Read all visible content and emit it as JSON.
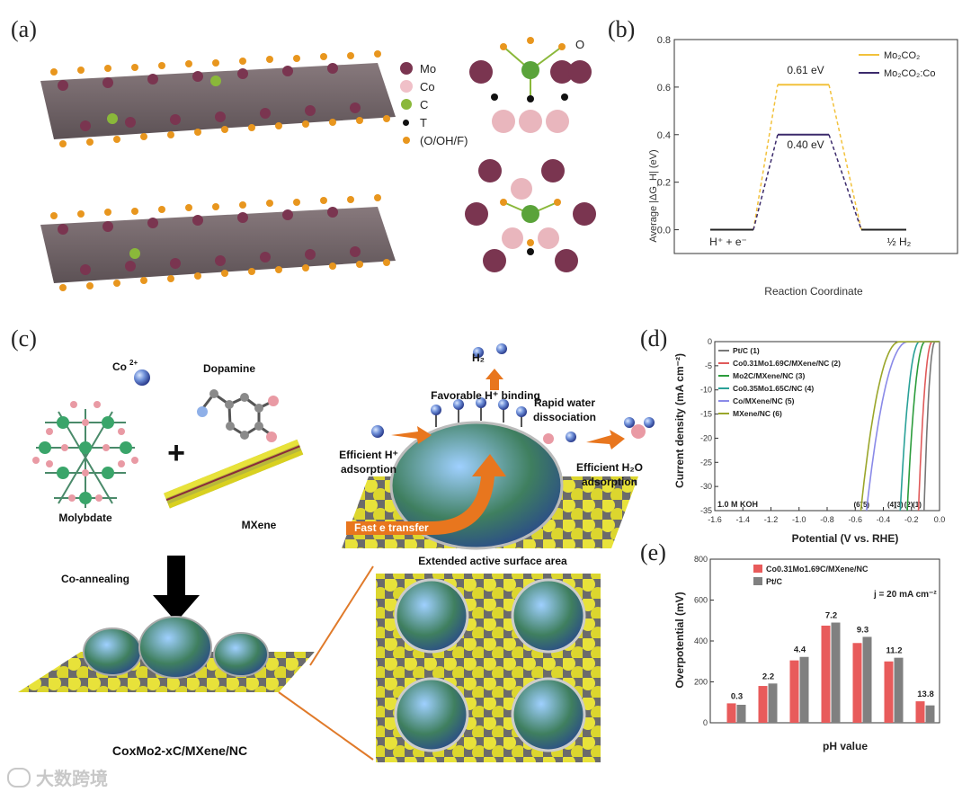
{
  "panels": {
    "a": "(a)",
    "b": "(b)",
    "c": "(c)",
    "d": "(d)",
    "e": "(e)"
  },
  "panel_a": {
    "legend": [
      {
        "label": "Mo",
        "color": "#7a3550"
      },
      {
        "label": "Co",
        "color": "#f0c0c8"
      },
      {
        "label": "C",
        "color": "#8ab83a"
      },
      {
        "label": "T",
        "color": "#111111"
      },
      {
        "label": "(O/OH/F)",
        "color": "#e8961e"
      }
    ],
    "side_label": "O"
  },
  "panel_c": {
    "co_ion": "Co",
    "co_ion_sup": "2+",
    "dopamine": "Dopamine",
    "molybdate": "Molybdate",
    "mxene": "MXene",
    "co_annealing": "Co-annealing",
    "product": "CoxMo2-xC/MXene/NC",
    "h2": "H₂",
    "favorable": "Favorable H⁺ binding",
    "rapid": "Rapid water",
    "rapid2": "dissociation",
    "efficient_h": "Efficient H⁺",
    "efficient_h2": "adsorption",
    "efficient_h2o": "Efficient H₂O",
    "efficient_h2o2": "adsorption",
    "fast_e": "Fast e transfer",
    "extended": "Extended active surface area"
  },
  "watermark": "大数跨境",
  "chart_data": [
    {
      "id": "b",
      "type": "line",
      "ylabel": "Average |ΔG_H| (eV)",
      "xlabel": "Reaction Coordinate",
      "ylim": [
        -0.1,
        0.8
      ],
      "yticks": [
        "0.0",
        "0.2",
        "0.4",
        "0.6",
        "0.8"
      ],
      "x_states": [
        "H⁺ + e⁻",
        "",
        "½ H₂"
      ],
      "series": [
        {
          "name": "Mo₂CO₂",
          "color": "#f2c13b",
          "values": [
            0,
            0.61,
            0
          ]
        },
        {
          "name": "Mo₂CO₂:Co",
          "color": "#3b2a6b",
          "values": [
            0,
            0.4,
            0
          ]
        }
      ],
      "annotations": [
        "0.61 eV",
        "0.40 eV"
      ]
    },
    {
      "id": "d",
      "type": "line",
      "xlabel": "Potential (V vs. RHE)",
      "ylabel": "Current density (mA cm⁻²)",
      "xlim": [
        -1.6,
        0.0
      ],
      "ylim": [
        -35,
        0
      ],
      "xticks": [
        "-1.6",
        "-1.4",
        "-1.2",
        "-1.0",
        "-0.8",
        "-0.6",
        "-0.4",
        "-0.2",
        "0.0"
      ],
      "yticks": [
        "0",
        "-5",
        "-10",
        "-15",
        "-20",
        "-25",
        "-30",
        "-35"
      ],
      "annotation": "1.0 M KOH",
      "curve_labels": [
        "(6)",
        "(5)",
        "(4)",
        "(3)",
        "(2)",
        "(1)"
      ],
      "series": [
        {
          "name": "Pt/C (1)",
          "color": "#777777",
          "onset": -0.03,
          "end": -0.11
        },
        {
          "name": "Co0.31Mo1.69C/MXene/NC (2)",
          "color": "#e05a5a",
          "onset": -0.05,
          "end": -0.15
        },
        {
          "name": "Mo2C/MXene/NC (3)",
          "color": "#2c9c3c",
          "onset": -0.1,
          "end": -0.23
        },
        {
          "name": "Co0.35Mo1.65C/NC (4)",
          "color": "#2aa198",
          "onset": -0.14,
          "end": -0.28
        },
        {
          "name": "Co/MXene/NC (5)",
          "color": "#8a8ae8",
          "onset": -0.22,
          "end": -0.52
        },
        {
          "name": "MXene/NC (6)",
          "color": "#9aa62a",
          "onset": -0.28,
          "end": -0.56
        }
      ]
    },
    {
      "id": "e",
      "type": "bar",
      "xlabel": "pH value",
      "ylabel": "Overpotential (mV)",
      "ylim": [
        0,
        800
      ],
      "yticks": [
        "0",
        "200",
        "400",
        "600",
        "800"
      ],
      "categories": [
        "0.3",
        "2.2",
        "4.4",
        "7.2",
        "9.3",
        "11.2",
        "13.8"
      ],
      "annotation": "j = 20 mA cm⁻²",
      "series": [
        {
          "name": "Co0.31Mo1.69C/MXene/NC",
          "color": "#e85b5b",
          "values": [
            95,
            180,
            305,
            475,
            390,
            300,
            105
          ]
        },
        {
          "name": "Pt/C",
          "color": "#808080",
          "values": [
            88,
            192,
            322,
            490,
            420,
            318,
            85
          ]
        }
      ]
    }
  ]
}
